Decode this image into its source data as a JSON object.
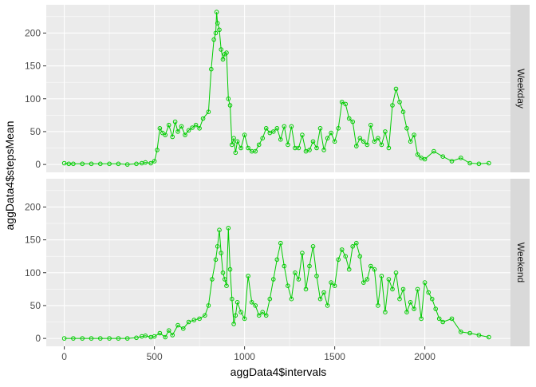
{
  "chart_data": {
    "type": "line",
    "xlabel": "aggData4$intervals",
    "ylabel": "aggData4$stepsMean",
    "xlim": [
      -100,
      2475
    ],
    "ylim": [
      -12,
      243
    ],
    "x_ticks": [
      "0",
      "500",
      "1000",
      "1500",
      "2000"
    ],
    "x_tick_values": [
      0,
      500,
      1000,
      1500,
      2000
    ],
    "y_ticks": [
      "0",
      "50",
      "100",
      "150",
      "200"
    ],
    "y_tick_values": [
      0,
      50,
      100,
      150,
      200
    ],
    "grid": true,
    "colors": {
      "series": "#00cc00",
      "panel": "#ebebeb",
      "strip": "#d9d9d9",
      "grid": "#ffffff"
    },
    "panels": [
      {
        "name": "Weekday",
        "x": [
          0,
          25,
          50,
          100,
          150,
          200,
          250,
          300,
          350,
          400,
          430,
          450,
          480,
          500,
          515,
          530,
          545,
          560,
          580,
          600,
          615,
          630,
          650,
          670,
          690,
          710,
          730,
          750,
          770,
          800,
          815,
          830,
          840,
          845,
          850,
          860,
          870,
          880,
          890,
          900,
          910,
          920,
          930,
          940,
          950,
          960,
          980,
          1000,
          1020,
          1040,
          1060,
          1080,
          1100,
          1120,
          1140,
          1160,
          1180,
          1200,
          1220,
          1240,
          1260,
          1280,
          1300,
          1320,
          1340,
          1360,
          1380,
          1400,
          1420,
          1440,
          1460,
          1480,
          1500,
          1520,
          1540,
          1560,
          1580,
          1600,
          1620,
          1640,
          1660,
          1680,
          1700,
          1720,
          1740,
          1760,
          1780,
          1800,
          1820,
          1840,
          1860,
          1880,
          1900,
          1920,
          1940,
          1960,
          1980,
          2000,
          2050,
          2100,
          2150,
          2200,
          2250,
          2300,
          2355
        ],
        "y": [
          2,
          1,
          1,
          1,
          1,
          1,
          1,
          1,
          0,
          1,
          2,
          3,
          2,
          5,
          22,
          55,
          48,
          45,
          60,
          42,
          65,
          50,
          58,
          45,
          52,
          56,
          60,
          55,
          70,
          80,
          145,
          190,
          200,
          232,
          215,
          205,
          175,
          160,
          168,
          170,
          100,
          90,
          30,
          40,
          18,
          35,
          25,
          45,
          25,
          20,
          20,
          30,
          40,
          55,
          48,
          50,
          55,
          38,
          58,
          30,
          58,
          25,
          25,
          45,
          20,
          22,
          35,
          25,
          55,
          22,
          40,
          48,
          35,
          55,
          95,
          92,
          70,
          65,
          28,
          40,
          35,
          30,
          60,
          35,
          40,
          30,
          50,
          25,
          90,
          115,
          95,
          80,
          55,
          35,
          45,
          15,
          10,
          8,
          20,
          12,
          5,
          10,
          2,
          1,
          2
        ]
      },
      {
        "name": "Weekend",
        "x": [
          0,
          50,
          100,
          150,
          200,
          250,
          300,
          350,
          400,
          430,
          450,
          480,
          500,
          530,
          560,
          580,
          600,
          630,
          660,
          690,
          720,
          750,
          780,
          800,
          820,
          840,
          850,
          860,
          870,
          880,
          890,
          900,
          910,
          920,
          930,
          940,
          950,
          960,
          980,
          1000,
          1020,
          1040,
          1060,
          1080,
          1100,
          1120,
          1140,
          1160,
          1180,
          1200,
          1220,
          1240,
          1260,
          1280,
          1300,
          1320,
          1340,
          1360,
          1380,
          1400,
          1420,
          1440,
          1460,
          1480,
          1500,
          1520,
          1540,
          1560,
          1580,
          1600,
          1620,
          1640,
          1660,
          1680,
          1700,
          1720,
          1740,
          1760,
          1780,
          1800,
          1820,
          1840,
          1860,
          1880,
          1900,
          1920,
          1940,
          1960,
          1980,
          2000,
          2020,
          2040,
          2060,
          2080,
          2100,
          2150,
          2200,
          2250,
          2300,
          2355
        ],
        "y": [
          0,
          0,
          0,
          0,
          0,
          0,
          0,
          0,
          1,
          3,
          4,
          2,
          3,
          8,
          2,
          12,
          5,
          20,
          15,
          25,
          28,
          30,
          35,
          50,
          90,
          120,
          140,
          165,
          130,
          100,
          90,
          80,
          168,
          105,
          60,
          22,
          35,
          55,
          40,
          30,
          95,
          55,
          50,
          35,
          40,
          35,
          60,
          90,
          120,
          145,
          110,
          80,
          60,
          100,
          90,
          130,
          75,
          110,
          140,
          95,
          60,
          70,
          50,
          85,
          80,
          120,
          135,
          125,
          105,
          140,
          145,
          125,
          85,
          90,
          110,
          105,
          50,
          95,
          40,
          90,
          75,
          100,
          60,
          75,
          40,
          55,
          45,
          75,
          30,
          85,
          70,
          60,
          45,
          30,
          25,
          30,
          10,
          8,
          5,
          2
        ]
      }
    ]
  }
}
